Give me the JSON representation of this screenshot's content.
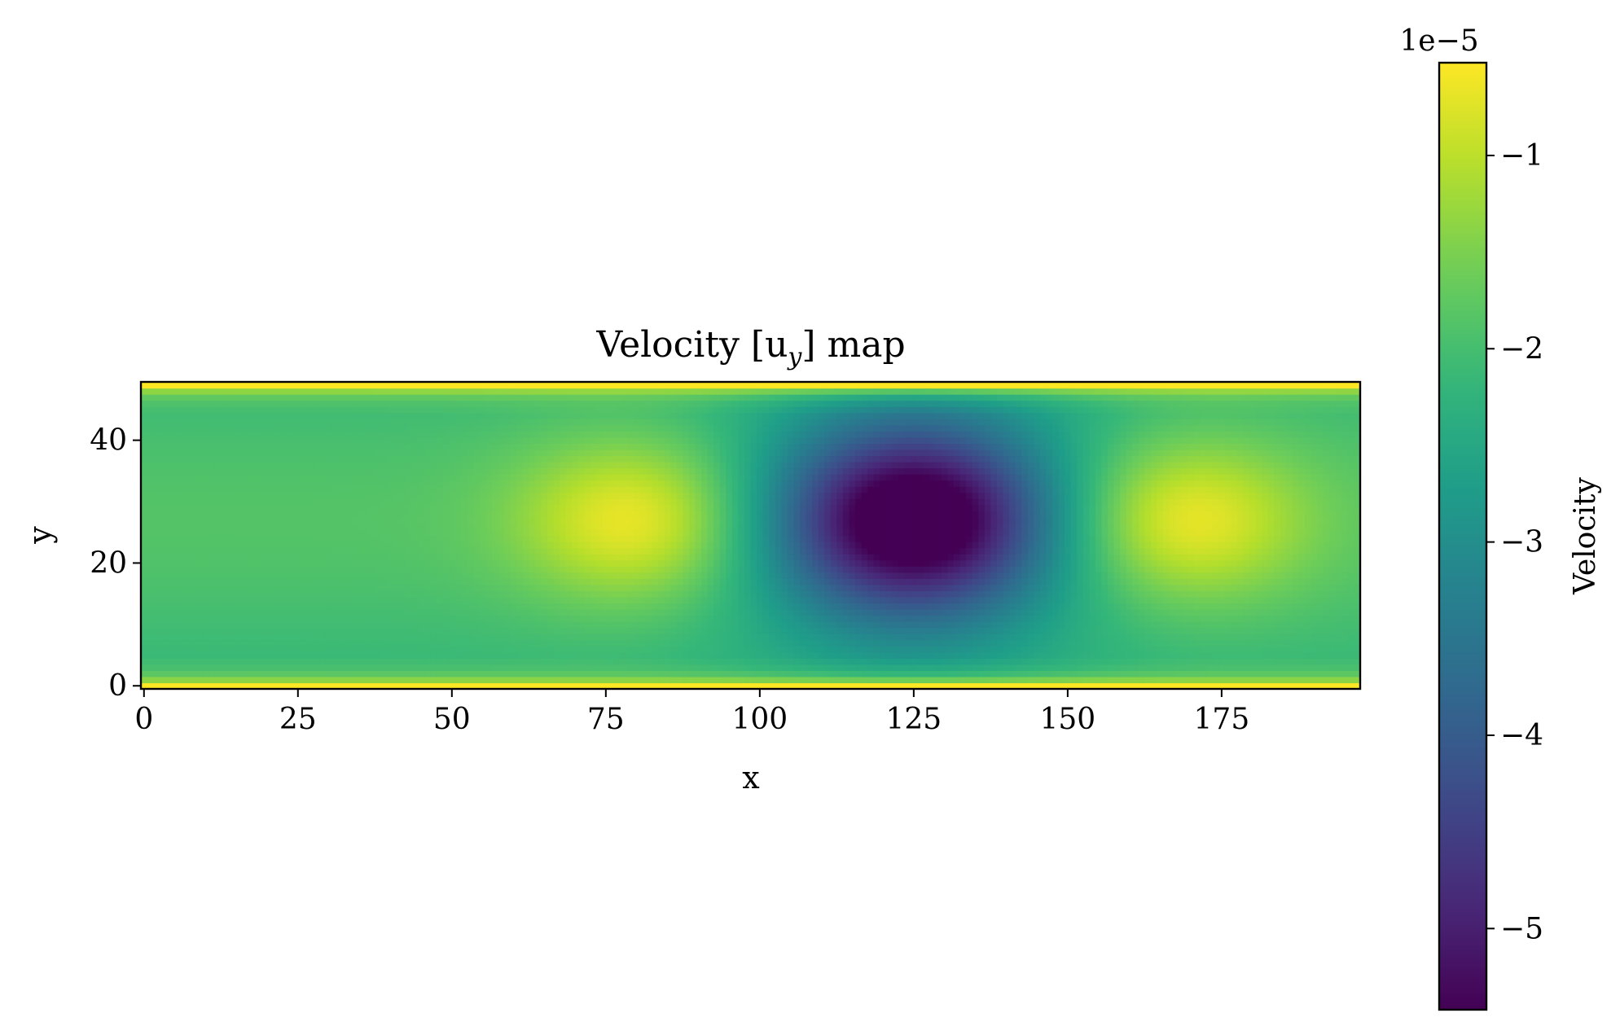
{
  "chart_data": {
    "type": "heatmap",
    "title": "Velocity [u",
    "title_subscript": "y",
    "title_suffix": "] map",
    "xlabel": "x",
    "ylabel": "y",
    "xlim": [
      -0.5,
      197.5
    ],
    "ylim": [
      -0.5,
      49.5
    ],
    "x_ticks": [
      0,
      25,
      50,
      75,
      100,
      125,
      150,
      175
    ],
    "x_tick_labels": [
      "0",
      "25",
      "50",
      "75",
      "100",
      "125",
      "150",
      "175"
    ],
    "y_ticks": [
      0,
      20,
      40
    ],
    "y_tick_labels": [
      "0",
      "20",
      "40"
    ],
    "colormap": "viridis",
    "colorbar": {
      "label": "Velocity",
      "offset_text": "1e−5",
      "range": [
        -5.42,
        -0.52
      ],
      "ticks": [
        -1,
        -2,
        -3,
        -4,
        -5
      ],
      "tick_labels": [
        "−1",
        "−2",
        "−3",
        "−4",
        "−5"
      ]
    },
    "grid_shape": [
      50,
      198
    ],
    "field_features": [
      {
        "kind": "maximum",
        "x": 80,
        "y": 27,
        "value": -0.7
      },
      {
        "kind": "minimum",
        "x": 125,
        "y": 27,
        "value": -5.4
      },
      {
        "kind": "maximum",
        "x": 169,
        "y": 27,
        "value": -0.7
      }
    ],
    "background_value": -2.0,
    "wall_value": -0.5
  }
}
